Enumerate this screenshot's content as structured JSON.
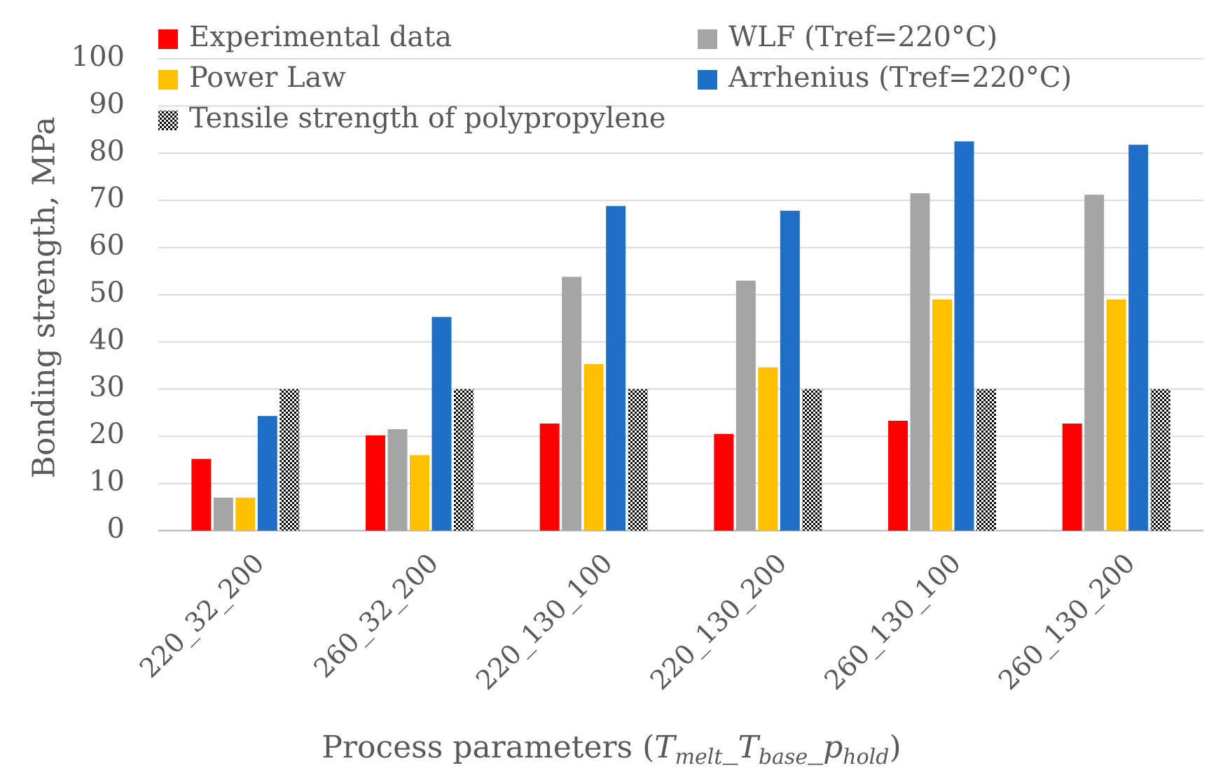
{
  "chart_data": {
    "type": "bar",
    "title": "",
    "ylabel": "Bonding strength, MPa",
    "xlabel": {
      "prefix": "Process parameters (",
      "T1": "T",
      "T1_sub": "melt",
      "sep1": "_",
      "T2": "T",
      "T2_sub": "base",
      "sep2": "_",
      "p": "p",
      "p_sub": "hold",
      "suffix": ")"
    },
    "ylim": [
      0,
      100
    ],
    "yticks": [
      0,
      10,
      20,
      30,
      40,
      50,
      60,
      70,
      80,
      90,
      100
    ],
    "grid": true,
    "legend_position": "top",
    "categories": [
      "220_32_200",
      "260_32_200",
      "220_130_100",
      "220_130_200",
      "260_130_100",
      "260_130_200"
    ],
    "series": [
      {
        "name": "Experimental data",
        "color": "#ff0000",
        "pattern": "solid",
        "values": [
          15.2,
          20.2,
          22.7,
          20.5,
          23.3,
          22.7
        ]
      },
      {
        "name": "WLF (Tref=220°C)",
        "color": "#a5a5a5",
        "pattern": "solid",
        "values": [
          7.0,
          21.5,
          53.8,
          53.0,
          71.5,
          71.2
        ]
      },
      {
        "name": "Power Law",
        "color": "#ffc000",
        "pattern": "solid",
        "values": [
          7.0,
          16.0,
          35.3,
          34.6,
          49.0,
          49.0
        ]
      },
      {
        "name": "Arrhenius (Tref=220°C)",
        "color": "#1f6fc8",
        "pattern": "solid",
        "values": [
          24.3,
          45.3,
          68.8,
          67.8,
          82.5,
          81.8
        ]
      },
      {
        "name": "Tensile strength of polypropylene",
        "color": "#000000",
        "pattern": "checker",
        "values": [
          30,
          30,
          30,
          30,
          30,
          30
        ]
      }
    ]
  }
}
